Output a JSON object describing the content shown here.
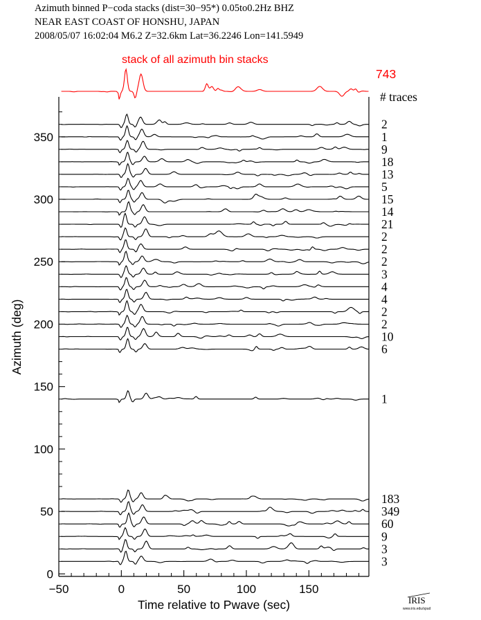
{
  "header": {
    "line1": "Azimuth binned P−coda stacks (dist=30−95*)  0.05to0.2Hz  BHZ",
    "line2": "NEAR EAST COAST OF HONSHU, JAPAN",
    "line3": "2008/05/07  16:02:04  M6.2  Z=32.6km Lat=36.2246 Lon=141.5949"
  },
  "stack": {
    "label": "stack of all azimuth bin stacks",
    "count": "743",
    "color": "#ff0000"
  },
  "traces_label": "# traces",
  "logo": {
    "text": "IRIS",
    "subtext": "www.iris.edu/spud"
  },
  "chart_data": {
    "type": "line",
    "xlabel": "Time relative to Pwave (sec)",
    "ylabel": "Azimuth (deg)",
    "xlim": [
      -50,
      198
    ],
    "ylim": [
      -2,
      382
    ],
    "xticks": [
      -50,
      0,
      50,
      100,
      150
    ],
    "xtick_labels": [
      "−50",
      "0",
      "50",
      "100",
      "150"
    ],
    "yticks": [
      0,
      50,
      100,
      150,
      200,
      250,
      300,
      350
    ],
    "yticks_minor": [
      10,
      20,
      30,
      40,
      60,
      70,
      80,
      90,
      110,
      120,
      130,
      140,
      160,
      170,
      180,
      190,
      210,
      220,
      230,
      240,
      260,
      270,
      280,
      290,
      310,
      320,
      330,
      340,
      360,
      370
    ],
    "bins": [
      {
        "azimuth": 360,
        "traces": "2"
      },
      {
        "azimuth": 350,
        "traces": "1"
      },
      {
        "azimuth": 340,
        "traces": "9"
      },
      {
        "azimuth": 330,
        "traces": "18"
      },
      {
        "azimuth": 320,
        "traces": "13"
      },
      {
        "azimuth": 310,
        "traces": "5"
      },
      {
        "azimuth": 300,
        "traces": "15"
      },
      {
        "azimuth": 290,
        "traces": "14"
      },
      {
        "azimuth": 280,
        "traces": "21"
      },
      {
        "azimuth": 270,
        "traces": "2"
      },
      {
        "azimuth": 260,
        "traces": "2"
      },
      {
        "azimuth": 250,
        "traces": "2"
      },
      {
        "azimuth": 240,
        "traces": "3"
      },
      {
        "azimuth": 230,
        "traces": "4"
      },
      {
        "azimuth": 220,
        "traces": "4"
      },
      {
        "azimuth": 210,
        "traces": "2"
      },
      {
        "azimuth": 200,
        "traces": "2"
      },
      {
        "azimuth": 190,
        "traces": "10"
      },
      {
        "azimuth": 180,
        "traces": "6"
      },
      {
        "azimuth": 140,
        "traces": "1"
      },
      {
        "azimuth": 60,
        "traces": "183"
      },
      {
        "azimuth": 50,
        "traces": "349"
      },
      {
        "azimuth": 40,
        "traces": "60"
      },
      {
        "azimuth": 30,
        "traces": "9"
      },
      {
        "azimuth": 20,
        "traces": "3"
      },
      {
        "azimuth": 10,
        "traces": "3"
      }
    ]
  }
}
